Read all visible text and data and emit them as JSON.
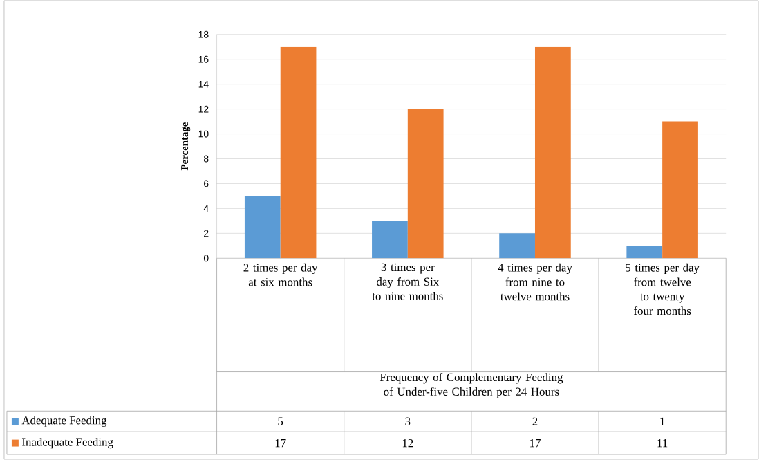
{
  "chart_data": {
    "type": "bar",
    "ylabel": "Percentage",
    "xlabel": "Frequency of Complementary Feeding of Under-five Children per 24 Hours",
    "categories": [
      "2 times per day at six months",
      "3 times per day from Six to nine months",
      "4 times per day from nine to twelve months",
      "5 times per day from twelve to twenty four months"
    ],
    "series": [
      {
        "name": "Adequate Feeding",
        "color": "#5b9bd5",
        "values": [
          5,
          3,
          2,
          1
        ]
      },
      {
        "name": "Inadequate Feeding",
        "color": "#ed7d31",
        "values": [
          17,
          12,
          17,
          11
        ]
      }
    ],
    "ylim": [
      0,
      18
    ],
    "yticks": [
      0,
      2,
      4,
      6,
      8,
      10,
      12,
      14,
      16,
      18
    ],
    "grid": "y",
    "legend": "bottom",
    "data_labels": true
  }
}
